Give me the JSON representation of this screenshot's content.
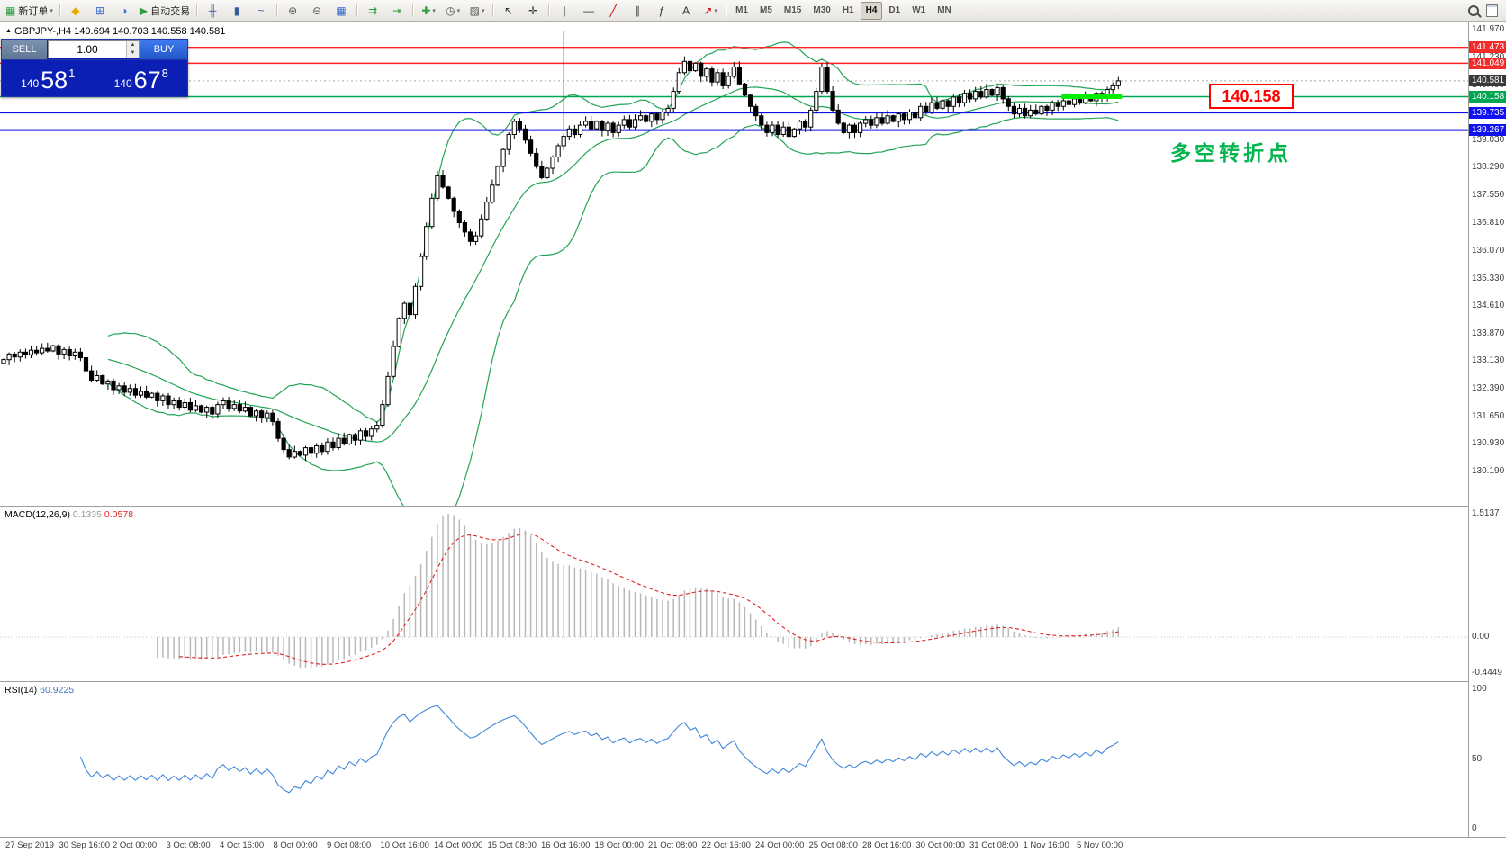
{
  "toolbar": {
    "items": [
      {
        "type": "button",
        "name": "new-order-button",
        "glyph": "▦",
        "glyph_color": "#2e9e3f",
        "label": "新订单",
        "dropdown": true
      },
      {
        "type": "sep"
      },
      {
        "type": "button",
        "name": "mql-editor-icon",
        "glyph": "◆",
        "glyph_color": "#eaa800"
      },
      {
        "type": "button",
        "name": "new-chart-icon",
        "glyph": "⊞",
        "glyph_color": "#3b6fd4"
      },
      {
        "type": "button",
        "name": "profiles-icon",
        "glyph": "◑",
        "glyph_color": "#3b6fd4"
      },
      {
        "type": "button",
        "name": "autotrading-button",
        "glyph": "▶",
        "glyph_color": "#2e9e3f",
        "label": "自动交易"
      },
      {
        "type": "sep"
      },
      {
        "type": "button",
        "name": "bar-chart-icon",
        "glyph": "╫",
        "glyph_color": "#37599e"
      },
      {
        "type": "button",
        "name": "candlestick-chart-icon",
        "glyph": "▮",
        "glyph_color": "#37599e"
      },
      {
        "type": "button",
        "name": "line-chart-icon",
        "glyph": "~",
        "glyph_color": "#37599e"
      },
      {
        "type": "sep"
      },
      {
        "type": "button",
        "name": "zoom-in-icon",
        "glyph": "⊕",
        "glyph_color": "#555"
      },
      {
        "type": "button",
        "name": "zoom-out-icon",
        "glyph": "⊖",
        "glyph_color": "#555"
      },
      {
        "type": "button",
        "name": "tile-windows-icon",
        "glyph": "▦",
        "glyph_color": "#3b6fd4"
      },
      {
        "type": "sep"
      },
      {
        "type": "button",
        "name": "autoscroll-icon",
        "glyph": "⇉",
        "glyph_color": "#2e9e3f"
      },
      {
        "type": "button",
        "name": "chart-shift-icon",
        "glyph": "⇥",
        "glyph_color": "#2e9e3f"
      },
      {
        "type": "sep"
      },
      {
        "type": "button",
        "name": "indicators-button",
        "glyph": "✚",
        "glyph_color": "#2e9e3f",
        "dropdown": true
      },
      {
        "type": "button",
        "name": "periods-button",
        "glyph": "◷",
        "glyph_color": "#555",
        "dropdown": true
      },
      {
        "type": "button",
        "name": "templates-button",
        "glyph": "▨",
        "glyph_color": "#555",
        "dropdown": true
      },
      {
        "type": "sep"
      },
      {
        "type": "button",
        "name": "cursor-button",
        "glyph": "↖",
        "glyph_color": "#333"
      },
      {
        "type": "button",
        "name": "crosshair-button",
        "glyph": "✛",
        "glyph_color": "#333"
      },
      {
        "type": "sep"
      },
      {
        "type": "button",
        "name": "vertical-line-button",
        "glyph": "|",
        "glyph_color": "#333"
      },
      {
        "type": "button",
        "name": "horizontal-line-button",
        "glyph": "—",
        "glyph_color": "#333"
      },
      {
        "type": "button",
        "name": "trendline-button",
        "glyph": "╱",
        "glyph_color": "#c00"
      },
      {
        "type": "button",
        "name": "channel-button",
        "glyph": "∥",
        "glyph_color": "#333"
      },
      {
        "type": "button",
        "name": "fibonacci-button",
        "glyph": "ƒ",
        "glyph_color": "#333"
      },
      {
        "type": "button",
        "name": "text-button",
        "glyph": "A",
        "glyph_color": "#333"
      },
      {
        "type": "button",
        "name": "arrows-button",
        "glyph": "↗",
        "glyph_color": "#c00",
        "dropdown": true
      },
      {
        "type": "sep"
      }
    ],
    "timeframes": {
      "items": [
        "M1",
        "M5",
        "M15",
        "M30",
        "H1",
        "H4",
        "D1",
        "W1",
        "MN"
      ],
      "active": "H4"
    }
  },
  "chart": {
    "marker_glyph": "▲",
    "title": "GBPJPY-,H4  140.694 140.703 140.558 140.581"
  },
  "trade_panel": {
    "sell_label": "SELL",
    "buy_label": "BUY",
    "lot": "1.00",
    "up_glyph": "▲",
    "down_glyph": "▼",
    "sell_price": {
      "prefix": "140",
      "big": "58",
      "sup": "1"
    },
    "buy_price": {
      "prefix": "140",
      "big": "67",
      "sup": "8"
    }
  },
  "annotations": {
    "price_label": "140.158",
    "note": "多空转折点"
  },
  "macd": {
    "label": "MACD(12,26,9)",
    "value_main": "0.1335",
    "value_signal": "0.0578"
  },
  "rsi": {
    "label": "RSI(14)",
    "value": "60.9225"
  },
  "scale": {
    "main_ticks": [
      {
        "label": "141.970",
        "value": 141.97
      },
      {
        "label": "141.230",
        "value": 141.23
      },
      {
        "label": "140.490",
        "value": 140.49
      },
      {
        "label": "139.750",
        "value": 139.75
      },
      {
        "label": "139.030",
        "value": 139.03
      },
      {
        "label": "138.290",
        "value": 138.29
      },
      {
        "label": "137.550",
        "value": 137.55
      },
      {
        "label": "136.810",
        "value": 136.81
      },
      {
        "label": "136.070",
        "value": 136.07
      },
      {
        "label": "135.330",
        "value": 135.33
      },
      {
        "label": "134.610",
        "value": 134.61
      },
      {
        "label": "133.870",
        "value": 133.87
      },
      {
        "label": "133.130",
        "value": 133.13
      },
      {
        "label": "132.390",
        "value": 132.39
      },
      {
        "label": "131.650",
        "value": 131.65
      },
      {
        "label": "130.930",
        "value": 130.93
      },
      {
        "label": "130.190",
        "value": 130.19
      }
    ],
    "tags": [
      {
        "text": "141.473",
        "value": 141.473,
        "color": "#f22b2b"
      },
      {
        "text": "141.049",
        "value": 141.049,
        "color": "#f22b2b"
      },
      {
        "text": "140.581",
        "value": 140.581,
        "color": "#3a3a3a"
      },
      {
        "text": "140.158",
        "value": 140.158,
        "color": "#00a651"
      },
      {
        "text": "139.735",
        "value": 139.735,
        "color": "#1212f0"
      },
      {
        "text": "139.267",
        "value": 139.267,
        "color": "#1212f0"
      }
    ],
    "macd_ticks": [
      {
        "label": "1.5137",
        "value": 1.5137
      },
      {
        "label": "0.00",
        "value": 0
      },
      {
        "label": "-0.4449",
        "value": -0.4449
      }
    ],
    "rsi_ticks": [
      {
        "label": "100",
        "value": 100
      },
      {
        "label": "50",
        "value": 50
      },
      {
        "label": "0",
        "value": 0
      }
    ]
  },
  "time_axis": {
    "labels": [
      "27 Sep 2019",
      "30 Sep 16:00",
      "2 Oct 00:00",
      "3 Oct 08:00",
      "4 Oct 16:00",
      "8 Oct 00:00",
      "9 Oct 08:00",
      "10 Oct 16:00",
      "14 Oct 00:00",
      "15 Oct 08:00",
      "16 Oct 16:00",
      "18 Oct 00:00",
      "21 Oct 08:00",
      "22 Oct 16:00",
      "24 Oct 00:00",
      "25 Oct 08:00",
      "28 Oct 16:00",
      "30 Oct 00:00",
      "31 Oct 08:00",
      "1 Nov 16:00",
      "5 Nov 00:00"
    ]
  },
  "colors": {
    "bollinger": "#23a455",
    "resistance": "#ff2222",
    "support": "#0f0fe8",
    "pivot": "#00a651",
    "highlight": "#00ee00",
    "macd_hist": "#b8b8b8",
    "macd_signal": "#e02020",
    "rsi_line": "#3f86d9",
    "candle_outline": "#000000",
    "bull_fill": "#ffffff",
    "bear_fill": "#000000",
    "last_price_line": "#a8a8a8"
  },
  "chart_data": {
    "type": "candlestick",
    "symbol": "GBPJPY",
    "timeframe": "H4",
    "ohlc_display": [
      140.694,
      140.703,
      140.558,
      140.581
    ],
    "price_axis": {
      "min": 130.19,
      "max": 141.97
    },
    "closes": [
      133.15,
      133.3,
      133.22,
      133.35,
      133.28,
      133.4,
      133.33,
      133.45,
      133.38,
      133.52,
      133.3,
      133.42,
      133.25,
      133.35,
      133.2,
      132.85,
      132.6,
      132.72,
      132.5,
      132.58,
      132.35,
      132.45,
      132.28,
      132.38,
      132.2,
      132.3,
      132.15,
      132.25,
      132.05,
      132.18,
      131.95,
      132.05,
      131.88,
      132.0,
      131.8,
      131.92,
      131.75,
      131.88,
      131.7,
      131.95,
      132.05,
      131.85,
      131.95,
      131.78,
      131.88,
      131.65,
      131.78,
      131.6,
      131.72,
      131.5,
      131.05,
      130.75,
      130.55,
      130.7,
      130.6,
      130.8,
      130.65,
      130.85,
      130.7,
      130.95,
      130.8,
      131.05,
      130.9,
      131.15,
      131.0,
      131.25,
      131.1,
      131.3,
      131.4,
      131.95,
      132.7,
      133.5,
      134.25,
      134.65,
      134.35,
      135.1,
      135.9,
      136.7,
      137.45,
      138.05,
      137.75,
      137.45,
      137.1,
      136.8,
      136.55,
      136.3,
      136.45,
      136.9,
      137.35,
      137.8,
      138.3,
      138.75,
      139.15,
      139.5,
      139.3,
      139.0,
      138.65,
      138.3,
      138.0,
      138.25,
      138.55,
      138.85,
      139.1,
      139.3,
      139.15,
      139.4,
      139.5,
      139.3,
      139.5,
      139.25,
      139.45,
      139.2,
      139.4,
      139.55,
      139.35,
      139.55,
      139.65,
      139.5,
      139.7,
      139.55,
      139.75,
      139.85,
      140.3,
      140.8,
      141.1,
      140.85,
      141.05,
      140.7,
      140.9,
      140.55,
      140.8,
      140.45,
      140.7,
      140.95,
      140.5,
      140.2,
      139.9,
      139.65,
      139.4,
      139.2,
      139.4,
      139.15,
      139.35,
      139.1,
      139.3,
      139.5,
      139.35,
      139.8,
      140.3,
      140.95,
      140.3,
      139.8,
      139.45,
      139.2,
      139.4,
      139.2,
      139.45,
      139.55,
      139.4,
      139.6,
      139.45,
      139.65,
      139.5,
      139.7,
      139.55,
      139.75,
      139.6,
      139.9,
      139.75,
      140.0,
      139.85,
      140.05,
      139.9,
      140.15,
      140.0,
      140.25,
      140.1,
      140.3,
      140.15,
      140.35,
      140.2,
      140.4,
      140.1,
      139.9,
      139.7,
      139.85,
      139.65,
      139.8,
      139.7,
      139.9,
      139.8,
      140.0,
      139.9,
      140.05,
      139.95,
      140.1,
      140.0,
      140.15,
      140.05,
      140.25,
      140.15,
      140.35,
      140.45,
      140.58
    ],
    "levels": {
      "resistance": [
        141.473,
        141.049
      ],
      "turning_point": 140.158,
      "support": [
        139.735,
        139.267
      ],
      "last_price": 140.581
    },
    "indicators": {
      "bollinger_bands": {
        "period": 20,
        "deviation": 2
      },
      "macd": {
        "fast": 12,
        "slow": 26,
        "signal": 9,
        "shown_values": [
          0.1335,
          0.0578
        ],
        "axis": [
          1.5137,
          0,
          -0.4449
        ]
      },
      "rsi": {
        "period": 14,
        "shown_value": 60.9225,
        "axis": [
          100,
          50,
          0
        ]
      }
    },
    "annotations": {
      "vertical_line_index": 102,
      "highlight_segment": {
        "price": 140.158,
        "from_index": 193,
        "to_index": 203
      }
    }
  }
}
